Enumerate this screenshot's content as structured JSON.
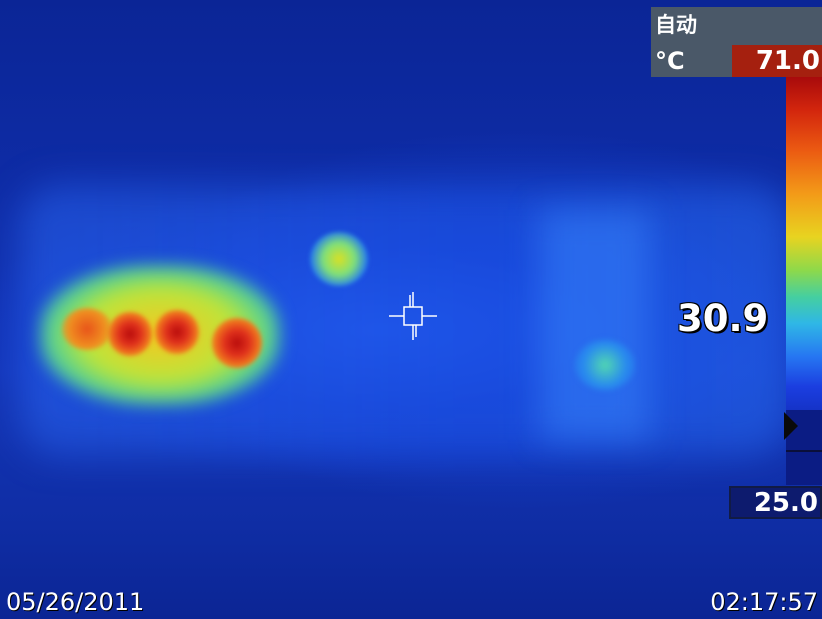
{
  "header": {
    "mode": "自动",
    "unit": "°C",
    "max_temp": "71.0"
  },
  "scale": {
    "min_temp": "25.0"
  },
  "measurement": {
    "spot_temp": "30.9"
  },
  "footer": {
    "date": "05/26/2011",
    "time": "02:17:57"
  },
  "colors": {
    "cold": "#0b2596",
    "hot": "#b80c0c",
    "max_box": "#a5200f",
    "info_box": "#4a5868"
  }
}
